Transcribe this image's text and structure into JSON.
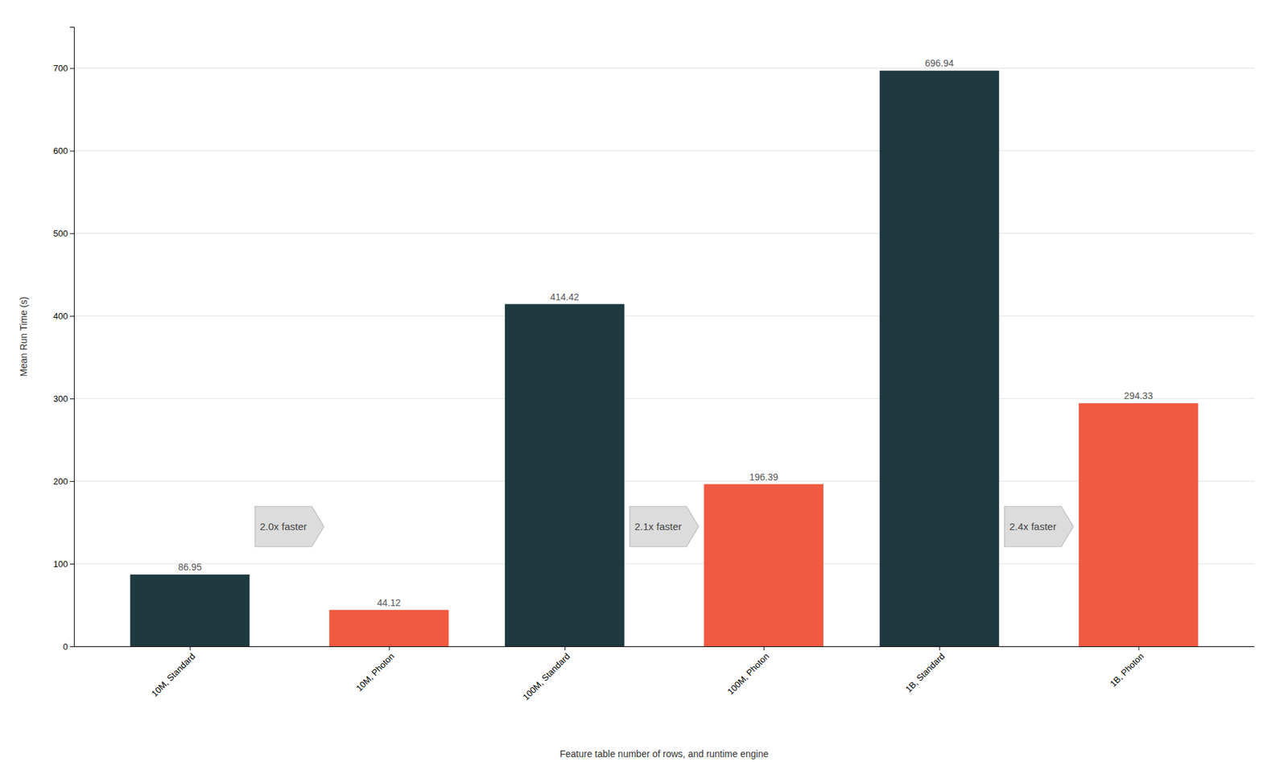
{
  "chart_data": {
    "type": "bar",
    "categories": [
      "10M, Standard",
      "10M, Photon",
      "100M, Standard",
      "100M, Photon",
      "1B, Standard",
      "1B, Photon"
    ],
    "values": [
      86.95,
      44.12,
      414.42,
      196.39,
      696.94,
      294.33
    ],
    "colors": [
      "#1e3a3f",
      "#f05a40",
      "#1e3a3f",
      "#f05a40",
      "#1e3a3f",
      "#f05a40"
    ],
    "ylabel": "Mean Run Time (s)",
    "xlabel": "Feature table number of rows, and runtime engine",
    "ylim": [
      0,
      750
    ],
    "yticks": [
      0,
      100,
      200,
      300,
      400,
      500,
      600,
      700
    ],
    "grid": true,
    "data_labels": true,
    "annotations": [
      {
        "text": "2.0x faster",
        "y": 145
      },
      {
        "text": "2.1x faster",
        "y": 145
      },
      {
        "text": "2.4x faster",
        "y": 145
      }
    ]
  }
}
